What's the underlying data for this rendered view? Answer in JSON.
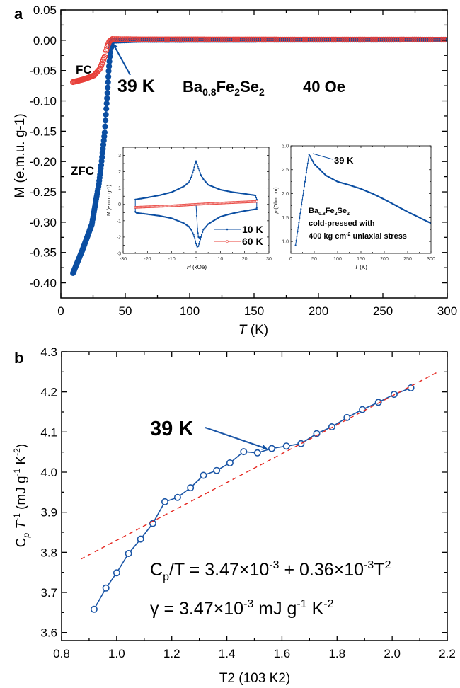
{
  "colors": {
    "zfc": "#0b4ea2",
    "fc": "#e8403a",
    "cp": "#1a55a6",
    "fit": "#e5261f",
    "axis": "#000000"
  },
  "labels": {
    "panel_a": "a",
    "panel_b": "b",
    "a_ylabel": {
      "M": "M",
      "unit": " (e.m.u. g",
      "exp": "-1",
      "close": ")"
    },
    "a_xlabel": {
      "T": "T",
      "unit": " (K)"
    },
    "fc": "FC",
    "zfc": "ZFC",
    "a_tc": "39 K",
    "compound": {
      "ba": "Ba",
      "s1": "0.8",
      "fe": "Fe",
      "s2": "2",
      "se": "Se",
      "s3": "2"
    },
    "field": "40 Oe",
    "inset1_ylabel": {
      "M": "M",
      "unit": " (e.m.u. g",
      "exp": "-1",
      "close": ")"
    },
    "inset1_xlabel": {
      "H": "H",
      "unit": " (kOe)"
    },
    "legend_10k": "10 K",
    "legend_60k": "60 K",
    "inset2_ylabel": {
      "rho": "ρ",
      "unit": " (Ohm cm)"
    },
    "inset2_xlabel": {
      "T": "T",
      "unit": " (K)"
    },
    "inset2_tc": "39 K",
    "inset2_note": {
      "line2": "cold-pressed with",
      "l3a": "400 kg cm",
      "l3exp": "-2",
      "l3b": " uniaxial stress"
    },
    "b_tc": "39 K",
    "b_ylabel": {
      "C": "C",
      "p": "p",
      "T": " T",
      "texp": "-1",
      "unit": " (mJ g",
      "gexp": "-1",
      "K": " K",
      "kexp": "-2",
      "close": ")"
    },
    "b_xlabel": {
      "T": "T",
      "texp": "2",
      "unit": " (10",
      "uexp": "3",
      "K": " K",
      "kexp": "2",
      "close": ")"
    },
    "equation": {
      "c": "C",
      "p": "p",
      "a": "/T = 3.47×10",
      "e1": "-3",
      "b": " + 0.36×10",
      "e2": "-3",
      "t": "T",
      "e3": "2"
    },
    "gamma": {
      "a": "γ = 3.47×10",
      "e1": "-3",
      "b": " mJ g",
      "e2": "-1",
      "c": " K",
      "e3": "-2"
    }
  },
  "chart_data": [
    {
      "id": "panel-a",
      "type": "scatter",
      "xlabel": "T (K)",
      "ylabel": "M (e.m.u. g-1)",
      "xlim": [
        0,
        300
      ],
      "ylim": [
        -0.425,
        0.05
      ],
      "xticks": [
        0,
        50,
        100,
        150,
        200,
        250,
        300
      ],
      "xtick_labels": [
        "0",
        "50",
        "100",
        "150",
        "200",
        "250",
        "300"
      ],
      "yticks": [
        -0.4,
        -0.35,
        -0.3,
        -0.25,
        -0.2,
        -0.15,
        -0.1,
        -0.05,
        0.0,
        0.05
      ],
      "ytick_labels": [
        "-0.40",
        "-0.35",
        "-0.30",
        "-0.25",
        "-0.20",
        "-0.15",
        "-0.10",
        "-0.05",
        "0.00",
        "0.05"
      ],
      "series": [
        {
          "name": "ZFC",
          "style": "filled-circle-line",
          "color": "#0b4ea2",
          "x": [
            9.4,
            16.7,
            24,
            29.5,
            31.3,
            34,
            35.3,
            36.4,
            37.1,
            38,
            38.9,
            40,
            60,
            300
          ],
          "y": [
            -0.384,
            -0.346,
            -0.304,
            -0.237,
            -0.206,
            -0.152,
            -0.113,
            -0.078,
            -0.051,
            -0.027,
            -0.006,
            -0.001,
            0.0005,
            0.001
          ]
        },
        {
          "name": "FC",
          "style": "open-circle",
          "color": "#e8403a",
          "x": [
            9.4,
            18.5,
            25.8,
            30.4,
            34,
            35.8,
            37.6,
            40,
            60,
            300
          ],
          "y": [
            -0.069,
            -0.064,
            -0.058,
            -0.047,
            -0.027,
            -0.012,
            -0.002,
            0.002,
            0.0015,
            0.001
          ]
        }
      ]
    },
    {
      "id": "inset-mh",
      "type": "line",
      "xlabel": "H (kOe)",
      "ylabel": "M (e.m.u. g-1)",
      "xlim": [
        -30,
        30
      ],
      "ylim": [
        -3,
        3.5
      ],
      "xticks": [
        -30,
        -20,
        -10,
        0,
        10,
        20,
        30
      ],
      "xtick_labels": [
        "-30",
        "-20",
        "-10",
        "0",
        "10",
        "20",
        "30"
      ],
      "yticks": [
        -3,
        -2,
        -1,
        0,
        1,
        2,
        3
      ],
      "ytick_labels": [
        "-3",
        "-2",
        "-1",
        "0",
        "1",
        "2",
        "3"
      ],
      "legend": "bottom-right",
      "series": [
        {
          "name": "10 K",
          "style": "line-dot",
          "color": "#0b4ea2",
          "branches": [
            {
              "x": [
                -25,
                -25,
                -20,
                -15,
                -10,
                -5,
                -3,
                -2,
                -1,
                -0.5,
                0,
                0.5,
                1,
                2,
                3,
                5,
                10,
                15,
                20,
                24.5,
                25,
                25
              ],
              "y": [
                -0.45,
                0.3,
                0.42,
                0.56,
                0.75,
                1.1,
                1.35,
                1.65,
                2.1,
                2.45,
                2.65,
                2.45,
                2.2,
                1.8,
                1.55,
                1.2,
                0.9,
                0.75,
                0.65,
                0.55,
                0.3,
                -0.2
              ]
            },
            {
              "x": [
                25,
                20,
                15,
                10,
                5,
                3,
                2,
                1.5,
                1,
                0.5,
                0,
                -0.5,
                -1,
                -2,
                -3,
                -5,
                -10,
                -15,
                -20,
                -24.5,
                -25
              ],
              "y": [
                -0.28,
                -0.4,
                -0.55,
                -0.75,
                -1.2,
                -1.55,
                -2.0,
                -2.3,
                -2.55,
                -2.6,
                -2.4,
                -2.1,
                -1.85,
                -1.55,
                -1.35,
                -1.15,
                -0.85,
                -0.7,
                -0.6,
                -0.52,
                -0.45
              ]
            },
            {
              "x": [
                0,
                0.3,
                0.6,
                1.0,
                1.5
              ],
              "y": [
                0,
                -0.7,
                -1.5,
                -2.0,
                -2.05
              ]
            }
          ]
        },
        {
          "name": "60 K",
          "style": "open-circle-line",
          "color": "#e8403a",
          "branches": [
            {
              "x": [
                -25,
                -10,
                0,
                10,
                25
              ],
              "y": [
                -0.18,
                -0.09,
                0.0,
                0.08,
                0.18
              ]
            }
          ]
        }
      ]
    },
    {
      "id": "inset-rho",
      "type": "line",
      "xlabel": "T (K)",
      "ylabel": "ρ (Ohm cm)",
      "xlim": [
        0,
        300
      ],
      "ylim": [
        0.75,
        3.0
      ],
      "xticks": [
        0,
        50,
        100,
        150,
        200,
        250,
        300
      ],
      "xtick_labels": [
        "0",
        "50",
        "100",
        "150",
        "200",
        "250",
        "300"
      ],
      "yticks": [
        1.0,
        1.5,
        2.0,
        2.5,
        3.0
      ],
      "ytick_labels": [
        "1.0",
        "1.5",
        "2.0",
        "2.5",
        "3.0"
      ],
      "series": [
        {
          "style": "line-dot",
          "color": "#0b4ea2",
          "branches": [
            {
              "x": [
                10,
                39,
                50,
                75,
                100,
                125,
                150,
                175,
                200,
                225,
                250,
                275,
                300
              ],
              "y": [
                0.92,
                2.82,
                2.62,
                2.38,
                2.25,
                2.18,
                2.1,
                2.0,
                1.88,
                1.75,
                1.62,
                1.5,
                1.38
              ]
            }
          ]
        }
      ]
    },
    {
      "id": "panel-b",
      "type": "scatter",
      "xlabel": "T2 (103 K2)",
      "ylabel": "Cp T-1 (mJ g-1 K-2)",
      "xlim": [
        0.8,
        2.2
      ],
      "ylim": [
        3.58,
        4.3
      ],
      "xticks": [
        0.8,
        1.0,
        1.2,
        1.4,
        1.6,
        1.8,
        2.0,
        2.2
      ],
      "xtick_labels": [
        "0.8",
        "1.0",
        "1.2",
        "1.4",
        "1.6",
        "1.8",
        "2.0",
        "2.2"
      ],
      "yticks": [
        3.6,
        3.7,
        3.8,
        3.9,
        4.0,
        4.1,
        4.2,
        4.3
      ],
      "ytick_labels": [
        "3.6",
        "3.7",
        "3.8",
        "3.9",
        "4.0",
        "4.1",
        "4.2",
        "4.3"
      ],
      "series": [
        {
          "style": "open-circle-line",
          "color": "#1a55a6",
          "x": [
            0.918,
            0.961,
            1.0,
            1.043,
            1.087,
            1.131,
            1.175,
            1.221,
            1.268,
            1.315,
            1.363,
            1.411,
            1.461,
            1.511,
            1.563,
            1.616,
            1.669,
            1.726,
            1.781,
            1.836,
            1.892,
            1.95,
            2.007,
            2.068
          ],
          "y": [
            3.658,
            3.711,
            3.749,
            3.797,
            3.833,
            3.872,
            3.926,
            3.937,
            3.961,
            3.992,
            4.004,
            4.023,
            4.051,
            4.048,
            4.059,
            4.065,
            4.071,
            4.096,
            4.113,
            4.136,
            4.156,
            4.174,
            4.194,
            4.21
          ]
        },
        {
          "style": "dashed-fit",
          "color": "#e5261f",
          "intercept": 3.47,
          "slope": 0.36,
          "x_range": [
            0.87,
            2.17
          ]
        }
      ]
    }
  ]
}
